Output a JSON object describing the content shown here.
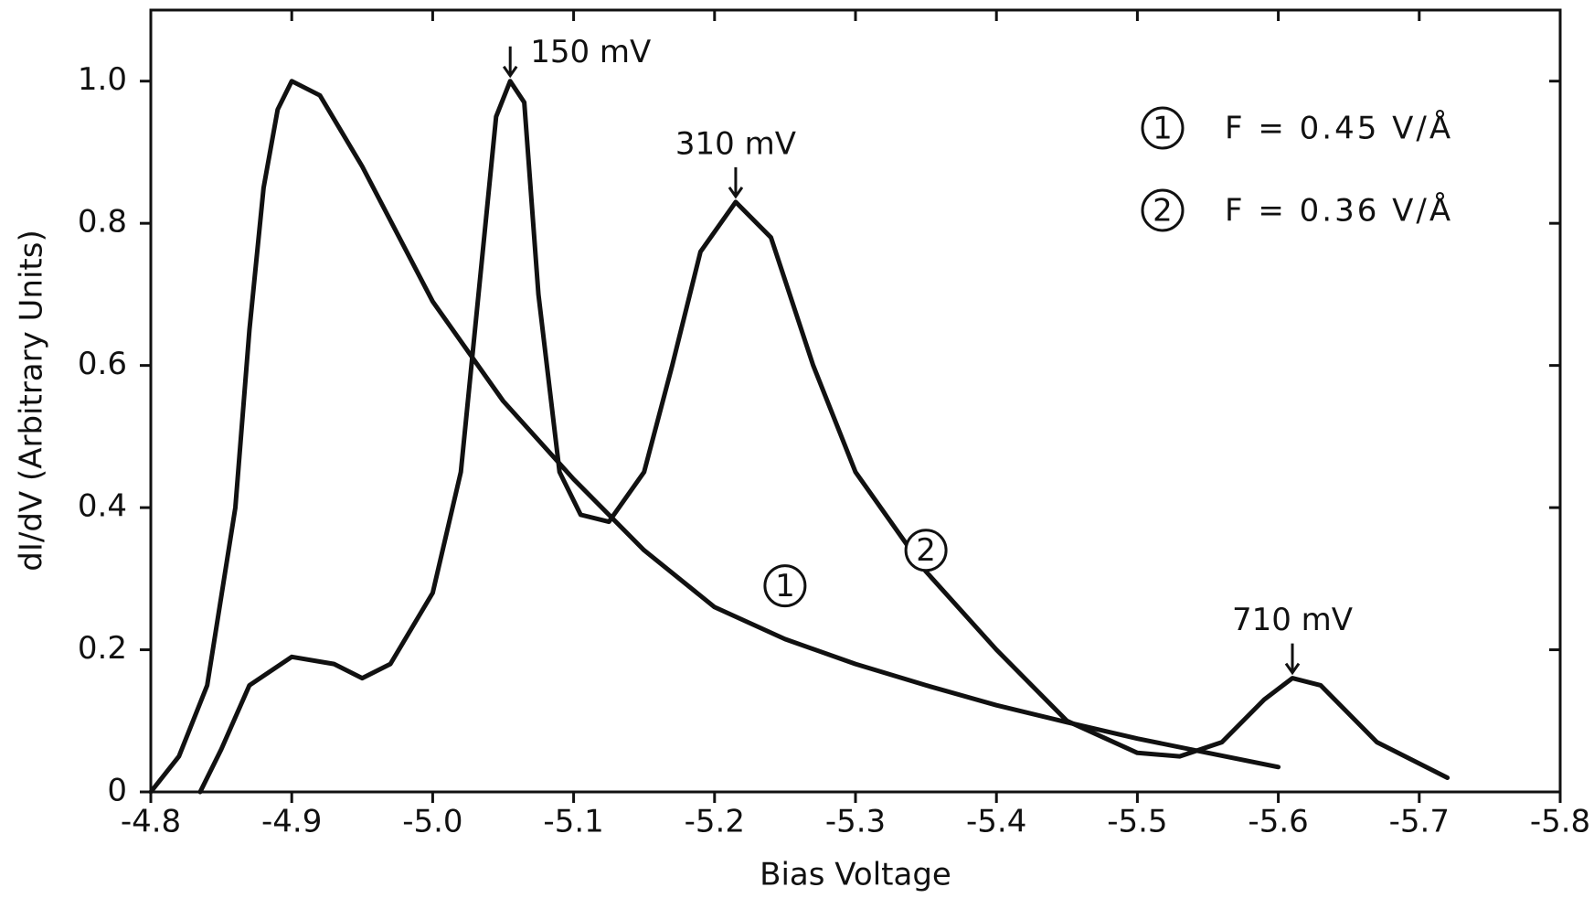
{
  "chart_data": {
    "type": "line",
    "xlabel": "Bias Voltage",
    "ylabel": "dI/dV (Arbitrary Units)",
    "xlim": [
      -4.8,
      -5.8
    ],
    "xticks": [
      -4.8,
      -4.9,
      {
        "value": -5,
        "label": "-5.0"
      },
      -5.1,
      -5.2,
      -5.3,
      -5.4,
      -5.5,
      -5.6,
      -5.7,
      -5.8
    ],
    "ylim": [
      0,
      1.1
    ],
    "yticks": [
      0,
      0.2,
      0.4,
      0.6,
      0.8,
      {
        "value": 1,
        "label": "1.0"
      }
    ],
    "grid": false,
    "legend": "upper right",
    "series": [
      {
        "name": "F = 0.45 V/Å",
        "label": "1",
        "color": "#111111",
        "label_at": [
          -5.25,
          0.29
        ],
        "x": [
          -4.8,
          -4.82,
          -4.84,
          -4.86,
          -4.87,
          -4.88,
          -4.89,
          -4.9,
          -4.92,
          -4.95,
          -5.0,
          -5.05,
          -5.1,
          -5.15,
          -5.2,
          -5.25,
          -5.3,
          -5.35,
          -5.4,
          -5.45,
          -5.5,
          -5.55,
          -5.6
        ],
        "values": [
          0,
          0.05,
          0.15,
          0.4,
          0.65,
          0.85,
          0.96,
          1.0,
          0.98,
          0.88,
          0.69,
          0.55,
          0.44,
          0.34,
          0.26,
          0.215,
          0.18,
          0.15,
          0.122,
          0.098,
          0.075,
          0.055,
          0.035
        ]
      },
      {
        "name": "F = 0.36 V/Å",
        "label": "2",
        "color": "#111111",
        "label_at": [
          -5.35,
          0.34
        ],
        "x": [
          -4.835,
          -4.85,
          -4.87,
          -4.9,
          -4.93,
          -4.95,
          -4.97,
          -5.0,
          -5.02,
          -5.035,
          -5.045,
          -5.055,
          -5.065,
          -5.075,
          -5.09,
          -5.105,
          -5.125,
          -5.15,
          -5.17,
          -5.19,
          -5.215,
          -5.24,
          -5.27,
          -5.3,
          -5.35,
          -5.4,
          -5.45,
          -5.5,
          -5.53,
          -5.56,
          -5.59,
          -5.61,
          -5.63,
          -5.67,
          -5.72
        ],
        "values": [
          0,
          0.06,
          0.15,
          0.19,
          0.18,
          0.16,
          0.18,
          0.28,
          0.45,
          0.75,
          0.95,
          1.0,
          0.97,
          0.7,
          0.45,
          0.39,
          0.38,
          0.45,
          0.6,
          0.76,
          0.83,
          0.78,
          0.6,
          0.45,
          0.31,
          0.2,
          0.1,
          0.055,
          0.05,
          0.07,
          0.13,
          0.16,
          0.15,
          0.07,
          0.02
        ]
      }
    ],
    "annotations": [
      {
        "text": "150 mV",
        "x": -5.055,
        "y": 1.0
      },
      {
        "text": "310 mV",
        "x": -5.215,
        "y": 0.83
      },
      {
        "text": "710 mV",
        "x": -5.61,
        "y": 0.16
      }
    ]
  }
}
